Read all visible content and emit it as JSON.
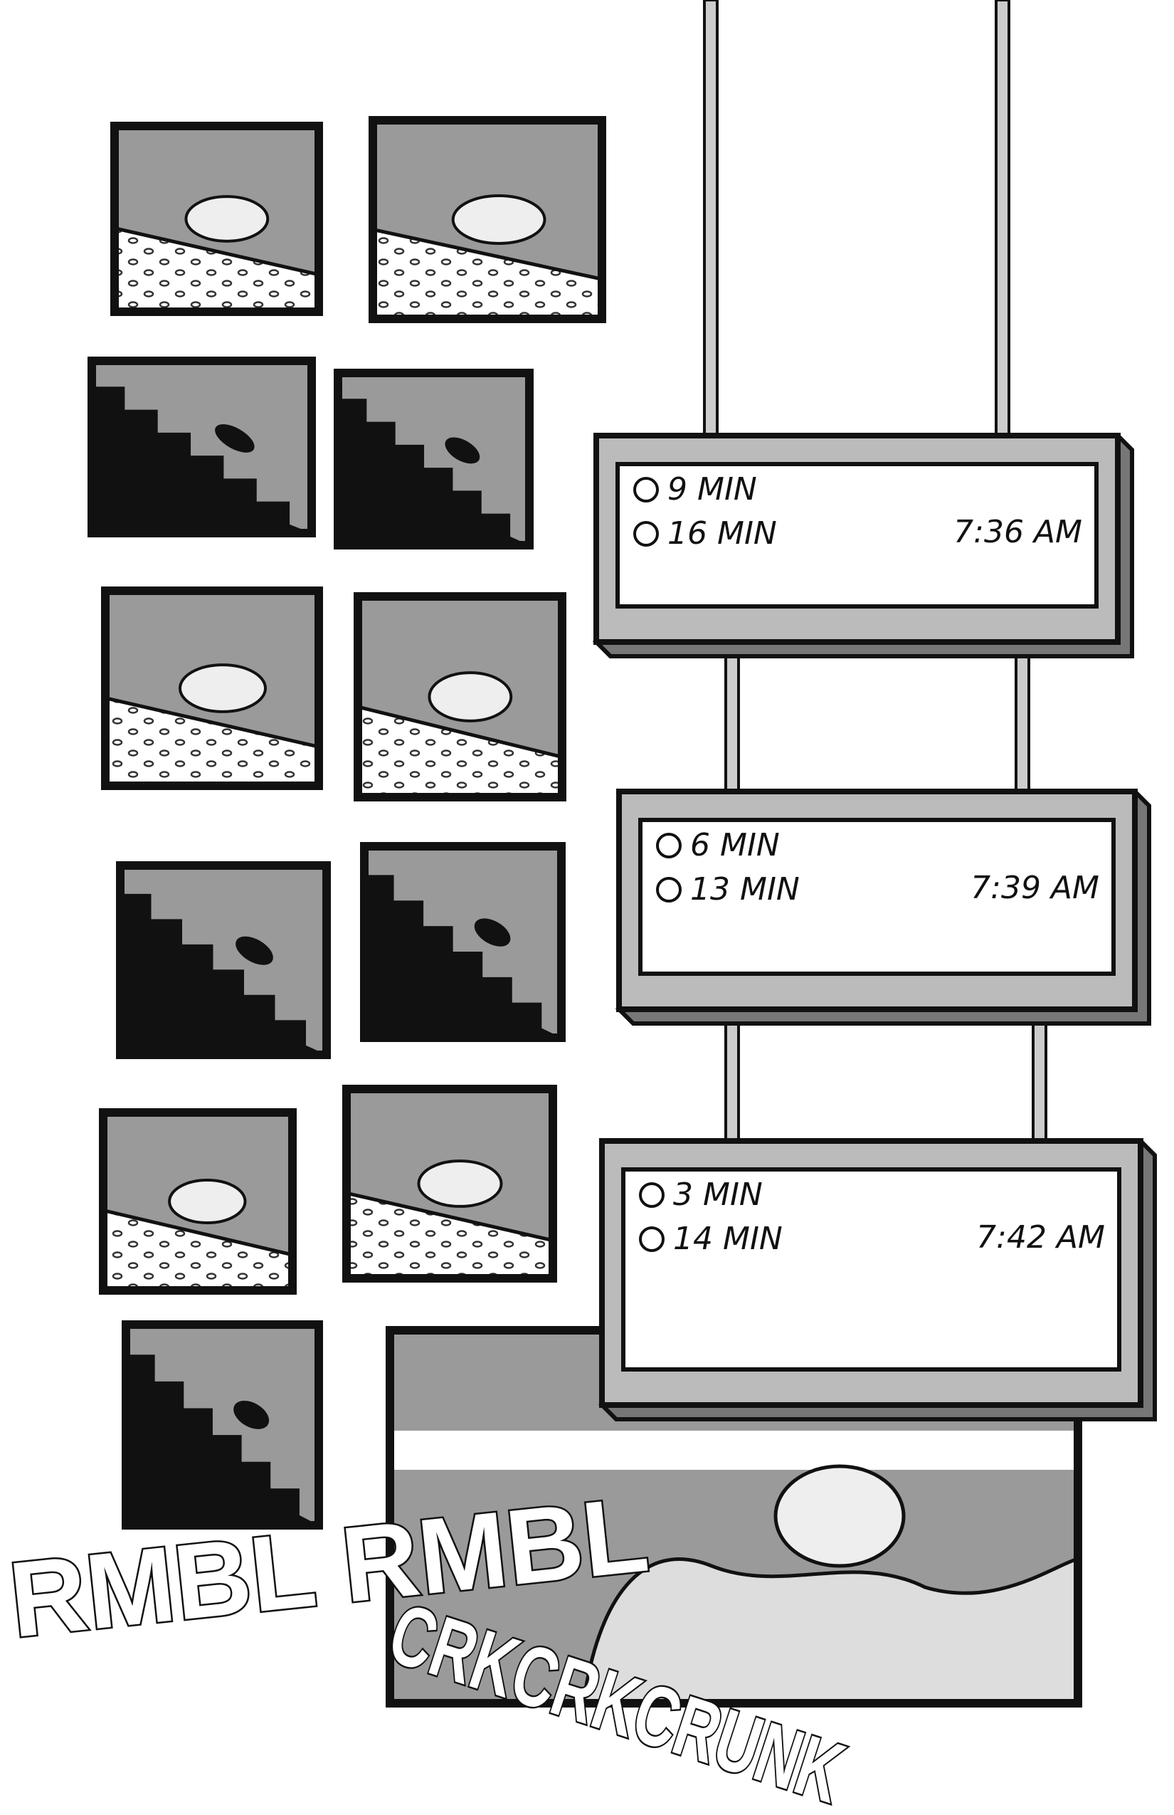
{
  "signs": [
    {
      "rows": [
        "9 MIN",
        "16 MIN"
      ],
      "time": "7:36 AM"
    },
    {
      "rows": [
        "6 MIN",
        "13 MIN"
      ],
      "time": "7:39 AM"
    },
    {
      "rows": [
        "3 MIN",
        "14 MIN"
      ],
      "time": "7:42 AM"
    }
  ],
  "sound_effects": [
    "RMBL RMBL",
    "CRKCRKCRUNK"
  ]
}
